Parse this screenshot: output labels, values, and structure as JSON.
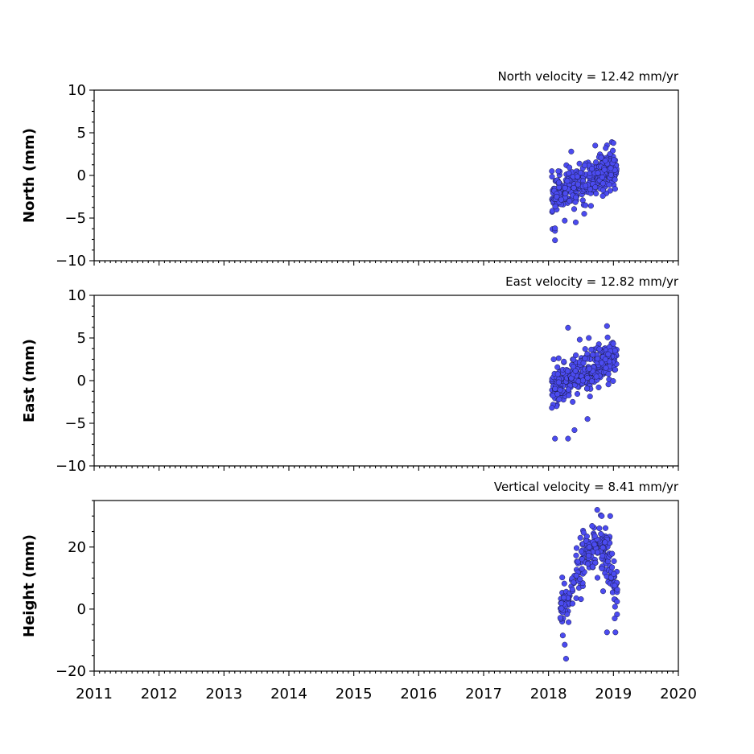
{
  "chart_data": [
    {
      "type": "scatter",
      "title": "North velocity = 12.42 mm/yr",
      "ylabel": "North (mm)",
      "xlim": [
        2011,
        2020
      ],
      "ylim": [
        -10,
        10
      ],
      "yticks": [
        -10,
        -5,
        0,
        5,
        10
      ],
      "ytick_labels": [
        "−10",
        "−5",
        "0",
        "5",
        "10"
      ],
      "marker_color": "#4b4bf0",
      "grid": false,
      "trend": {
        "x0": 2018.05,
        "y0": -2.5,
        "x1": 2019.05,
        "y1": 1.0,
        "scatter": 1.1
      },
      "outliers": [
        [
          2018.1,
          -7.6
        ],
        [
          2018.1,
          -6.5
        ],
        [
          2018.1,
          -6.2
        ],
        [
          2018.25,
          -5.3
        ],
        [
          2018.42,
          -5.5
        ],
        [
          2018.35,
          2.8
        ],
        [
          2018.72,
          3.5
        ],
        [
          2019.0,
          3.8
        ],
        [
          2018.88,
          3.2
        ],
        [
          2018.15,
          0.5
        ],
        [
          2018.55,
          -4.5
        ]
      ]
    },
    {
      "type": "scatter",
      "title": "East velocity = 12.82 mm/yr",
      "ylabel": "East (mm)",
      "xlim": [
        2011,
        2020
      ],
      "ylim": [
        -10,
        10
      ],
      "yticks": [
        -10,
        -5,
        0,
        5,
        10
      ],
      "ytick_labels": [
        "−10",
        "−5",
        "0",
        "5",
        "10"
      ],
      "marker_color": "#4b4bf0",
      "grid": false,
      "trend": {
        "x0": 2018.05,
        "y0": -1.2,
        "x1": 2019.05,
        "y1": 3.0,
        "scatter": 1.1
      },
      "outliers": [
        [
          2018.1,
          -6.8
        ],
        [
          2018.3,
          -6.8
        ],
        [
          2018.3,
          6.2
        ],
        [
          2018.9,
          6.4
        ],
        [
          2018.48,
          4.8
        ],
        [
          2018.62,
          5.0
        ],
        [
          2018.08,
          2.5
        ],
        [
          2018.4,
          -5.8
        ],
        [
          2018.6,
          -4.5
        ]
      ]
    },
    {
      "type": "scatter",
      "title": "Vertical velocity = 8.41 mm/yr",
      "ylabel": "Height (mm)",
      "xlim": [
        2011,
        2020
      ],
      "ylim": [
        -20,
        35
      ],
      "yticks": [
        -20,
        0,
        20
      ],
      "ytick_labels": [
        "−20",
        "0",
        "20"
      ],
      "marker_color": "#4b4bf0",
      "grid": false,
      "segments": [
        {
          "x0": 2018.18,
          "x1": 2018.35,
          "y0": 0.0,
          "y1": 4.0,
          "sd": 3.0,
          "n": 45
        },
        {
          "x0": 2018.35,
          "x1": 2018.58,
          "y0": 8.0,
          "y1": 18.0,
          "sd": 4.0,
          "n": 50
        },
        {
          "x0": 2018.58,
          "x1": 2018.95,
          "y0": 20.0,
          "y1": 18.0,
          "sd": 4.5,
          "n": 110
        },
        {
          "x0": 2018.95,
          "x1": 2019.06,
          "y0": 12.0,
          "y1": 6.0,
          "sd": 4.0,
          "n": 35
        }
      ],
      "outliers": [
        [
          2018.27,
          -16.0
        ],
        [
          2018.25,
          -11.5
        ],
        [
          2018.22,
          -8.5
        ],
        [
          2018.75,
          32.0
        ],
        [
          2018.82,
          30.0
        ],
        [
          2018.95,
          30.0
        ],
        [
          2019.02,
          -3.0
        ],
        [
          2019.03,
          -7.5
        ],
        [
          2018.9,
          -7.5
        ],
        [
          2018.5,
          3.2
        ]
      ]
    }
  ],
  "xticks": [
    2011,
    2012,
    2013,
    2014,
    2015,
    2016,
    2017,
    2018,
    2019,
    2020
  ],
  "xtick_labels": [
    "2011",
    "2012",
    "2013",
    "2014",
    "2015",
    "2016",
    "2017",
    "2018",
    "2019",
    "2020"
  ]
}
